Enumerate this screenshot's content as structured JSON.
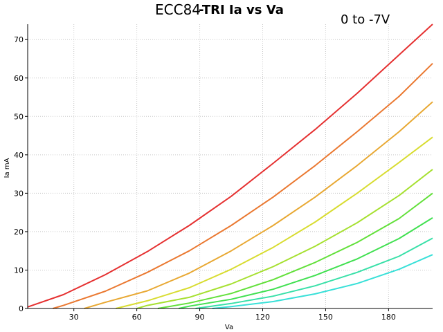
{
  "chart_data": {
    "type": "line",
    "title_part1": "ECC84",
    "title_part2": "-TRI Ia vs Va",
    "annotation": "0 to -7V",
    "xlabel": "Va",
    "ylabel": "Ia mA",
    "xlim": [
      8,
      201
    ],
    "ylim": [
      0,
      74
    ],
    "xticks": [
      30,
      60,
      90,
      120,
      150,
      180
    ],
    "yticks": [
      0,
      10,
      20,
      30,
      40,
      50,
      60,
      70
    ],
    "grid": true,
    "series": [
      {
        "color": "#e53030",
        "x": [
          8,
          25,
          45,
          65,
          85,
          105,
          125,
          145,
          165,
          185,
          201
        ],
        "y": [
          0.4,
          3.6,
          8.8,
          14.8,
          21.6,
          29.2,
          37.8,
          46.6,
          56.0,
          66.0,
          74.0
        ]
      },
      {
        "color": "#ea7830",
        "x": [
          20,
          25,
          45,
          65,
          85,
          105,
          125,
          145,
          165,
          185,
          201
        ],
        "y": [
          0,
          0.8,
          4.5,
          9.4,
          15.0,
          21.6,
          29.0,
          37.2,
          46.0,
          55.2,
          63.8
        ]
      },
      {
        "color": "#e8a832",
        "x": [
          35,
          45,
          65,
          85,
          105,
          125,
          145,
          165,
          185,
          201
        ],
        "y": [
          0,
          1.6,
          4.6,
          9.2,
          15.0,
          21.6,
          29.0,
          37.2,
          46.0,
          53.8
        ]
      },
      {
        "color": "#d8dc30",
        "x": [
          50,
          65,
          85,
          105,
          125,
          145,
          165,
          185,
          201
        ],
        "y": [
          0,
          2.0,
          5.4,
          10.2,
          15.9,
          22.5,
          30.0,
          38.0,
          44.6
        ]
      },
      {
        "color": "#a6e030",
        "x": [
          60,
          65,
          85,
          105,
          125,
          145,
          165,
          185,
          201
        ],
        "y": [
          0,
          0.8,
          2.9,
          6.4,
          10.9,
          16.2,
          22.3,
          29.4,
          36.2
        ]
      },
      {
        "color": "#62e03a",
        "x": [
          70,
          85,
          105,
          125,
          145,
          165,
          185,
          201
        ],
        "y": [
          0,
          1.4,
          3.9,
          7.5,
          12.0,
          17.2,
          23.4,
          30.0
        ]
      },
      {
        "color": "#40e050",
        "x": [
          80,
          85,
          105,
          125,
          145,
          165,
          185,
          201
        ],
        "y": [
          0,
          0.6,
          2.4,
          5.0,
          8.6,
          12.9,
          18.2,
          23.6
        ]
      },
      {
        "color": "#38e0a8",
        "x": [
          88,
          105,
          125,
          145,
          165,
          185,
          201
        ],
        "y": [
          0,
          1.3,
          3.2,
          5.9,
          9.4,
          13.6,
          18.3
        ]
      },
      {
        "color": "#38e0d8",
        "x": [
          96,
          105,
          125,
          145,
          165,
          185,
          201
        ],
        "y": [
          0,
          0.5,
          1.8,
          3.8,
          6.5,
          10.2,
          14.0
        ]
      }
    ]
  }
}
